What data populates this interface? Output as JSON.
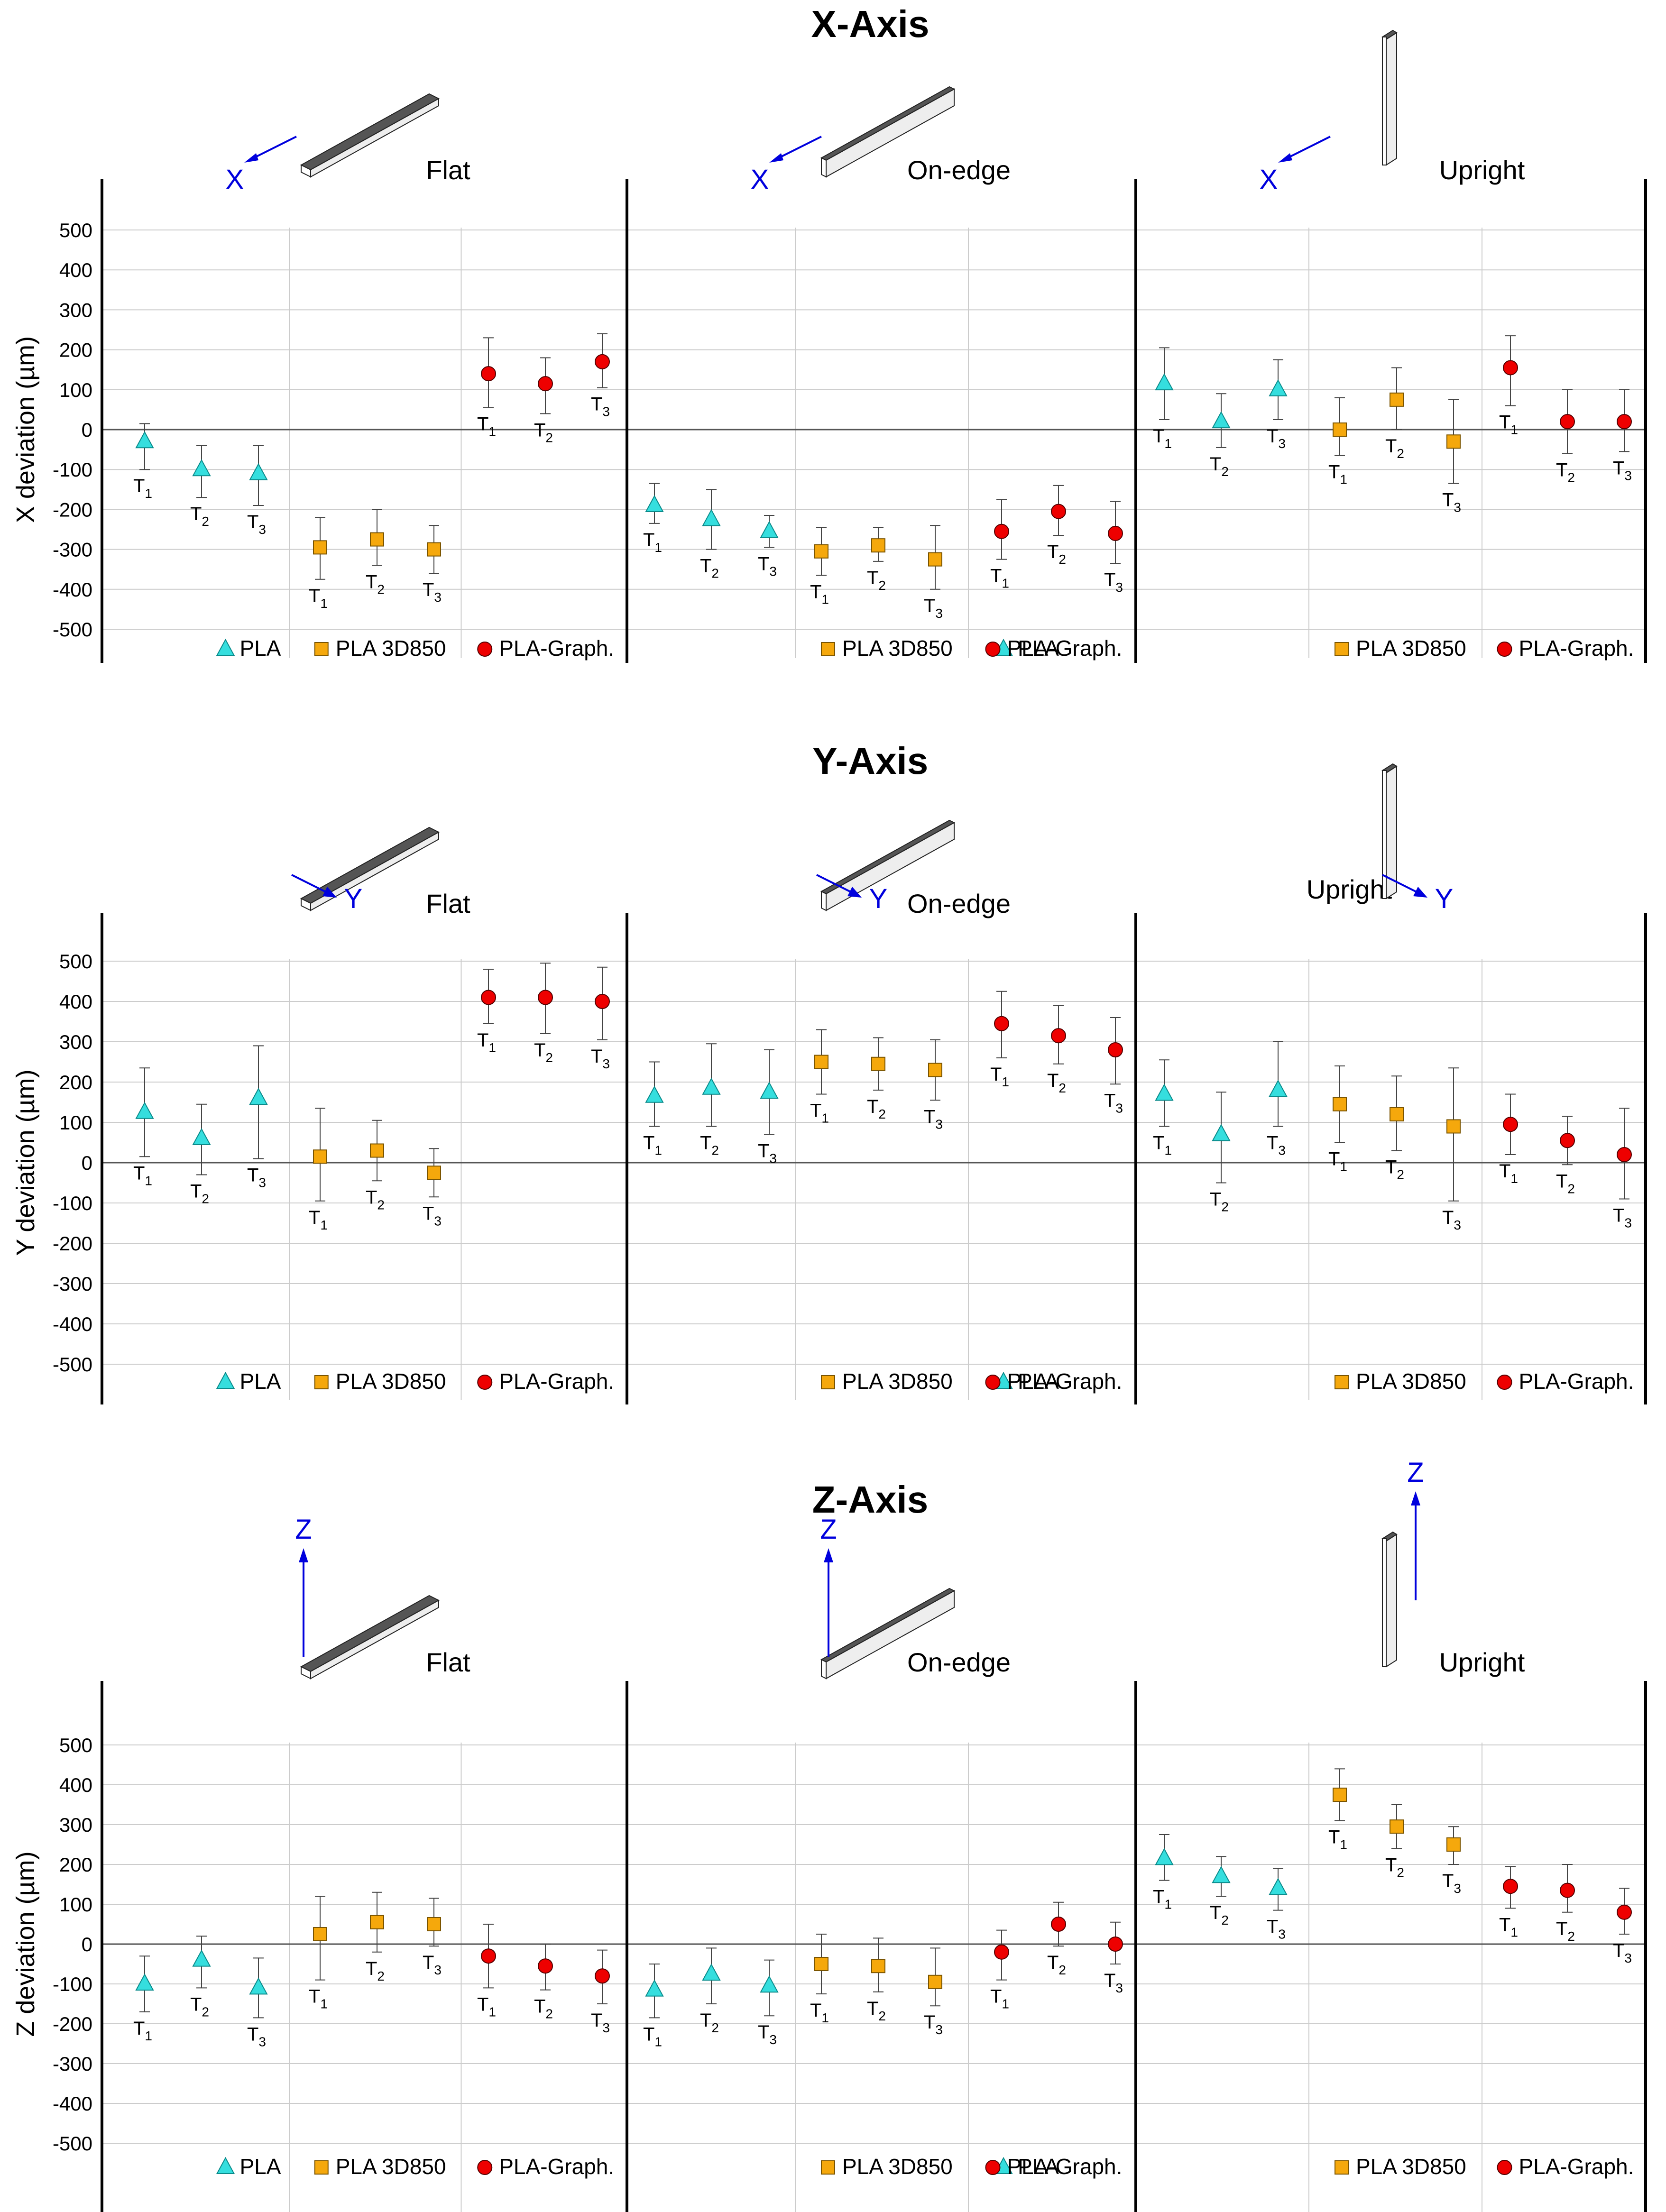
{
  "colors": {
    "pla": "#35dede",
    "pla_3d850": "#f5a80c",
    "pla_graph": "#ee0000",
    "axis_annotation": "#0000dd",
    "grid": "#cccccc",
    "bar_dark": "#555555",
    "bar_light": "#eeeeee"
  },
  "legend": {
    "pla": "PLA",
    "pla_3d850": "PLA 3D850",
    "pla_graph": "PLA-Graph.",
    "markers": {
      "pla": "triangle",
      "pla_3d850": "square",
      "pla_graph": "circle"
    }
  },
  "orientations": [
    "Flat",
    "On-edge",
    "Upright"
  ],
  "tests": [
    "T1",
    "T2",
    "T3"
  ],
  "chart_data": [
    {
      "type": "scatter",
      "title": "X-Axis",
      "axis_letter": "X",
      "ylabel": "X deviation (µm)",
      "ylim": [
        -500,
        500
      ],
      "yticks": [
        500,
        400,
        300,
        200,
        100,
        0,
        -100,
        -200,
        -300,
        -400,
        -500
      ],
      "grid": true,
      "error_bars": true,
      "panels": [
        {
          "label": "Flat",
          "pla": {
            "values": [
              -30,
              -100,
              -110
            ],
            "err_lo": [
              70,
              70,
              80
            ],
            "err_hi": [
              45,
              60,
              70
            ]
          },
          "pla_3d850": {
            "values": [
              -295,
              -275,
              -300
            ],
            "err_lo": [
              80,
              65,
              60
            ],
            "err_hi": [
              75,
              75,
              60
            ]
          },
          "pla_graph": {
            "values": [
              140,
              115,
              170
            ],
            "err_lo": [
              85,
              75,
              65
            ],
            "err_hi": [
              90,
              65,
              70
            ]
          }
        },
        {
          "label": "On-edge",
          "pla": {
            "values": [
              -190,
              -225,
              -255
            ],
            "err_lo": [
              45,
              75,
              40
            ],
            "err_hi": [
              55,
              75,
              40
            ]
          },
          "pla_3d850": {
            "values": [
              -305,
              -290,
              -325
            ],
            "err_lo": [
              60,
              40,
              75
            ],
            "err_hi": [
              60,
              45,
              85
            ]
          },
          "pla_graph": {
            "values": [
              -255,
              -205,
              -260
            ],
            "err_lo": [
              70,
              60,
              75
            ],
            "err_hi": [
              80,
              65,
              80
            ]
          }
        },
        {
          "label": "Upright",
          "pla": {
            "values": [
              115,
              20,
              100
            ],
            "err_lo": [
              90,
              65,
              75
            ],
            "err_hi": [
              90,
              70,
              75
            ]
          },
          "pla_3d850": {
            "values": [
              0,
              75,
              -30
            ],
            "err_lo": [
              65,
              75,
              105
            ],
            "err_hi": [
              80,
              80,
              105
            ]
          },
          "pla_graph": {
            "values": [
              155,
              20,
              20
            ],
            "err_lo": [
              95,
              80,
              75
            ],
            "err_hi": [
              80,
              80,
              80
            ]
          }
        }
      ]
    },
    {
      "type": "scatter",
      "title": "Y-Axis",
      "axis_letter": "Y",
      "ylabel": "Y deviation (µm)",
      "ylim": [
        -500,
        500
      ],
      "yticks": [
        500,
        400,
        300,
        200,
        100,
        0,
        -100,
        -200,
        -300,
        -400,
        -500
      ],
      "grid": true,
      "error_bars": true,
      "panels": [
        {
          "label": "Flat",
          "pla": {
            "values": [
              125,
              60,
              160
            ],
            "err_lo": [
              110,
              90,
              150
            ],
            "err_hi": [
              110,
              85,
              130
            ]
          },
          "pla_3d850": {
            "values": [
              15,
              30,
              -25
            ],
            "err_lo": [
              110,
              75,
              60
            ],
            "err_hi": [
              120,
              75,
              60
            ]
          },
          "pla_graph": {
            "values": [
              410,
              410,
              400
            ],
            "err_lo": [
              65,
              90,
              95
            ],
            "err_hi": [
              70,
              85,
              85
            ]
          }
        },
        {
          "label": "On-edge",
          "pla": {
            "values": [
              165,
              185,
              175
            ],
            "err_lo": [
              75,
              95,
              105
            ],
            "err_hi": [
              85,
              110,
              105
            ]
          },
          "pla_3d850": {
            "values": [
              250,
              245,
              230
            ],
            "err_lo": [
              80,
              65,
              75
            ],
            "err_hi": [
              80,
              65,
              75
            ]
          },
          "pla_graph": {
            "values": [
              345,
              315,
              280
            ],
            "err_lo": [
              85,
              70,
              85
            ],
            "err_hi": [
              80,
              75,
              80
            ]
          }
        },
        {
          "label": "Upright",
          "pla": {
            "values": [
              170,
              70,
              180
            ],
            "err_lo": [
              80,
              120,
              90
            ],
            "err_hi": [
              85,
              105,
              120
            ]
          },
          "pla_3d850": {
            "values": [
              145,
              120,
              90
            ],
            "err_lo": [
              95,
              90,
              185
            ],
            "err_hi": [
              95,
              95,
              145
            ]
          },
          "pla_graph": {
            "values": [
              95,
              55,
              20
            ],
            "err_lo": [
              75,
              60,
              110
            ],
            "err_hi": [
              75,
              60,
              115
            ]
          }
        }
      ]
    },
    {
      "type": "scatter",
      "title": "Z-Axis",
      "axis_letter": "Z",
      "ylabel": "Z deviation (µm)",
      "ylim": [
        -500,
        500
      ],
      "yticks": [
        500,
        400,
        300,
        200,
        100,
        0,
        -100,
        -200,
        -300,
        -400,
        -500
      ],
      "grid": true,
      "error_bars": true,
      "panels": [
        {
          "label": "Flat",
          "pla": {
            "values": [
              -100,
              -40,
              -110
            ],
            "err_lo": [
              70,
              70,
              75
            ],
            "err_hi": [
              70,
              60,
              75
            ]
          },
          "pla_3d850": {
            "values": [
              25,
              55,
              50
            ],
            "err_lo": [
              115,
              75,
              55
            ],
            "err_hi": [
              95,
              75,
              65
            ]
          },
          "pla_graph": {
            "values": [
              -30,
              -55,
              -80
            ],
            "err_lo": [
              80,
              60,
              70
            ],
            "err_hi": [
              80,
              55,
              65
            ]
          }
        },
        {
          "label": "On-edge",
          "pla": {
            "values": [
              -115,
              -75,
              -105
            ],
            "err_lo": [
              70,
              75,
              75
            ],
            "err_hi": [
              65,
              65,
              65
            ]
          },
          "pla_3d850": {
            "values": [
              -50,
              -55,
              -95
            ],
            "err_lo": [
              75,
              65,
              60
            ],
            "err_hi": [
              75,
              70,
              85
            ]
          },
          "pla_graph": {
            "values": [
              -20,
              50,
              0
            ],
            "err_lo": [
              70,
              55,
              50
            ],
            "err_hi": [
              55,
              55,
              55
            ]
          }
        },
        {
          "label": "Upright",
          "pla": {
            "values": [
              215,
              170,
              140
            ],
            "err_lo": [
              55,
              50,
              55
            ],
            "err_hi": [
              60,
              50,
              50
            ]
          },
          "pla_3d850": {
            "values": [
              375,
              295,
              250
            ],
            "err_lo": [
              65,
              55,
              50
            ],
            "err_hi": [
              65,
              55,
              45
            ]
          },
          "pla_graph": {
            "values": [
              145,
              135,
              80
            ],
            "err_lo": [
              55,
              55,
              55
            ],
            "err_hi": [
              50,
              65,
              60
            ]
          }
        }
      ]
    }
  ]
}
